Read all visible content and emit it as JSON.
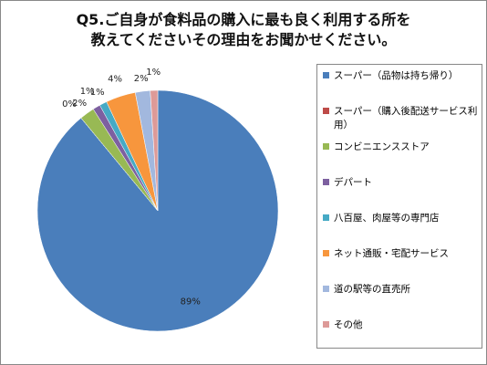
{
  "chart_data": {
    "type": "pie",
    "title": [
      "Q5.ご自身が食料品の購入に最も良く利用する所を",
      "教えてくださいその理由をお聞かせください。"
    ],
    "categories": [
      "スーパー（品物は持ち帰り）",
      "スーパー（購入後配送サービス利用）",
      "コンビニエンスストア",
      "デパート",
      "八百屋、肉屋等の専門店",
      "ネット通販・宅配サービス",
      "道の駅等の直売所",
      "その他"
    ],
    "values": [
      89,
      0,
      2,
      1,
      1,
      4,
      2,
      1
    ],
    "value_labels": [
      "89%",
      "0%",
      "2%",
      "1%",
      "1%",
      "4%",
      "2%",
      "1%"
    ],
    "colors": [
      "#4a7ebb",
      "#be4b48",
      "#98b954",
      "#7d60a0",
      "#46aac5",
      "#f7963d",
      "#a2b8de",
      "#dd9a98"
    ],
    "legend": "right"
  }
}
